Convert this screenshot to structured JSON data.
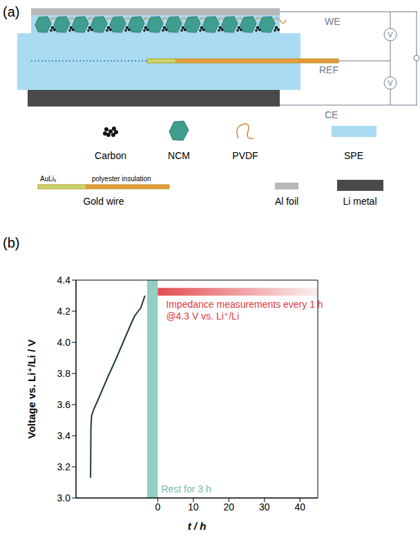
{
  "panel_a": {
    "letter": "(a)",
    "terminals": [
      "WE",
      "REF",
      "CE"
    ],
    "meter": "V",
    "legend": [
      {
        "label": "Carbon"
      },
      {
        "label": "NCM"
      },
      {
        "label": "PVDF"
      },
      {
        "label": "SPE"
      },
      {
        "label": "Gold wire",
        "parts": [
          "AuLiₓ",
          "polyester insulation"
        ]
      },
      {
        "label": "Al foil"
      },
      {
        "label": "Li metal"
      }
    ]
  },
  "chart_data": {
    "letter": "(b)",
    "type": "line",
    "xlabel": "t / h",
    "ylabel": "Voltage vs. Li⁺/Li / V",
    "x": [
      -18.9,
      -18.8,
      -18.6,
      -18.0,
      -17.0,
      -15.5,
      -14.0,
      -13.0,
      -12.0,
      -10.5,
      -9.0,
      -7.5,
      -6.5,
      -5.5,
      -4.8,
      -4.2,
      -3.6
    ],
    "values": [
      3.13,
      3.45,
      3.53,
      3.57,
      3.62,
      3.7,
      3.78,
      3.83,
      3.88,
      3.96,
      4.04,
      4.12,
      4.17,
      4.2,
      4.22,
      4.26,
      4.3
    ],
    "color": "#1f3d2b",
    "xlim": [
      -23,
      45
    ],
    "xticks": [
      0,
      10,
      20,
      30,
      40
    ],
    "ylim": [
      3.0,
      4.4
    ],
    "yticks": [
      {
        "value": 3,
        "label": "3.0"
      },
      3.2,
      3.4,
      3.6,
      3.8,
      {
        "value": 4,
        "label": "4.0"
      },
      4.2,
      4.4
    ],
    "annotations": [
      {
        "label": "Rest for 3 h",
        "x": [
          -3,
          0
        ],
        "color": "#6cbdb0"
      },
      {
        "label": "Impedance measurements every 1 h",
        "sublabel": "@4.3 V vs. Li⁺/Li",
        "x": [
          0,
          45
        ],
        "y": [
          4.3,
          4.35
        ],
        "color": "#e0393e"
      }
    ]
  }
}
